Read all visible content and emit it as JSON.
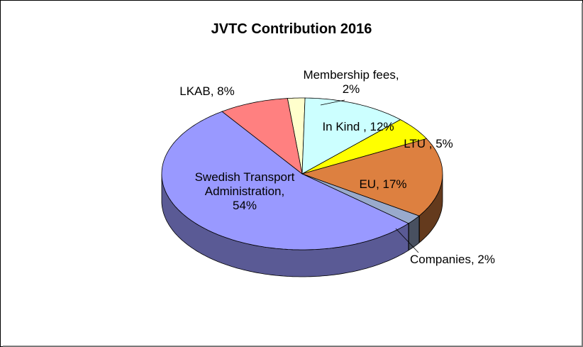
{
  "chart_data": {
    "type": "pie",
    "title": "JVTC Contribution 2016",
    "slices": [
      {
        "key": "membership",
        "label": "Membership fees, 2%",
        "lines": [
          "Membership fees,",
          "2%"
        ],
        "value": 2,
        "color": "#ffffcc"
      },
      {
        "key": "inkind",
        "label": "In Kind , 12%",
        "lines": [
          "In Kind , 12%"
        ],
        "value": 12,
        "color": "#ccffff"
      },
      {
        "key": "ltu",
        "label": "LTU , 5%",
        "lines": [
          "LTU , 5%"
        ],
        "value": 5,
        "color": "#ffff00"
      },
      {
        "key": "eu",
        "label": "EU, 17%",
        "lines": [
          "EU, 17%"
        ],
        "value": 17,
        "color": "#dd8040"
      },
      {
        "key": "companies",
        "label": "Companies, 2%",
        "lines": [
          "Companies, 2%"
        ],
        "value": 2,
        "color": "#99aacc"
      },
      {
        "key": "swedish",
        "label": "Swedish Transport Administration, 54%",
        "lines": [
          "Swedish Transport",
          "Administration,",
          "54%"
        ],
        "value": 54,
        "color": "#9999ff"
      },
      {
        "key": "lkab",
        "label": "LKAB, 8%",
        "lines": [
          "LKAB, 8%"
        ],
        "value": 8,
        "color": "#ff8080"
      }
    ],
    "legend": "none",
    "style": "3d-pie"
  }
}
